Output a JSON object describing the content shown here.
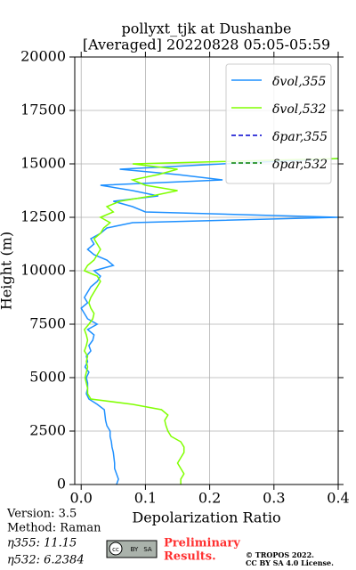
{
  "chart_data": {
    "type": "line",
    "title": [
      "pollyxt_tjk at Dushanbe",
      "[Averaged] 20220828 05:05-05:59"
    ],
    "x_label": "Depolarization Ratio",
    "y_label": "Height (m)",
    "xlim": [
      -0.01,
      0.4
    ],
    "ylim": [
      0,
      20000
    ],
    "xticks": [
      {
        "value": 0,
        "label": "0.0"
      },
      0.1,
      0.2,
      0.3,
      0.4
    ],
    "yticks": [
      0,
      2500,
      5000,
      7500,
      10000,
      12500,
      15000,
      17500,
      20000
    ],
    "grid": true,
    "legend": "upper right",
    "heights": [
      0,
      250,
      500,
      750,
      1000,
      1250,
      1500,
      1750,
      2000,
      2250,
      2500,
      2750,
      3000,
      3250,
      3500,
      3750,
      4000,
      4250,
      4500,
      4750,
      5000,
      5250,
      5500,
      5750,
      6000,
      6250,
      6500,
      6750,
      7000,
      7250,
      7500,
      7750,
      8000,
      8250,
      8500,
      8750,
      9000,
      9250,
      9500,
      9750,
      10000,
      10250,
      10500,
      10750,
      11000,
      11250,
      11500,
      11750,
      12000,
      12250,
      12500,
      12750,
      13000,
      13250,
      13500,
      13750,
      14000,
      14250,
      14500,
      14750,
      15000,
      15250
    ],
    "series": [
      {
        "name": "δvol,355",
        "color": "#1e90ff",
        "dash": false,
        "values": [
          0.055,
          0.058,
          0.055,
          0.052,
          0.052,
          0.051,
          0.05,
          0.048,
          0.047,
          0.045,
          0.045,
          0.04,
          0.038,
          0.037,
          0.036,
          0.025,
          0.012,
          0.008,
          0.01,
          0.01,
          0.008,
          0.012,
          0.006,
          0.01,
          0.008,
          0.015,
          0.012,
          0.018,
          0.02,
          0.01,
          0.025,
          0.01,
          0.005,
          0.0,
          0.01,
          0.005,
          0.01,
          0.015,
          0.025,
          0.03,
          0.02,
          0.05,
          0.04,
          0.02,
          0.01,
          0.02,
          0.015,
          0.03,
          0.04,
          0.08,
          0.4,
          0.1,
          0.08,
          0.05,
          0.12,
          0.08,
          0.03,
          0.22,
          0.15,
          0.06,
          0.22,
          0.4
        ]
      },
      {
        "name": "δvol,532",
        "color": "#80ff00",
        "dash": false,
        "values": [
          0.155,
          0.155,
          0.16,
          0.155,
          0.15,
          0.155,
          0.16,
          0.16,
          0.155,
          0.14,
          0.135,
          0.132,
          0.13,
          0.135,
          0.125,
          0.08,
          0.015,
          0.01,
          0.01,
          0.008,
          0.006,
          0.008,
          0.01,
          0.008,
          0.01,
          0.005,
          0.008,
          0.01,
          0.008,
          0.005,
          0.012,
          0.018,
          0.02,
          0.015,
          0.012,
          0.015,
          0.02,
          0.025,
          0.03,
          0.025,
          0.005,
          0.01,
          0.02,
          0.025,
          0.03,
          0.025,
          0.02,
          0.03,
          0.035,
          0.045,
          0.03,
          0.05,
          0.04,
          0.06,
          0.11,
          0.15,
          0.1,
          0.08,
          0.12,
          0.15,
          0.08,
          0.4
        ]
      },
      {
        "name": "δpar,355",
        "color": "#0000cd",
        "dash": true,
        "values": [
          null,
          null,
          null,
          null,
          null,
          null,
          null,
          null,
          null,
          null,
          null,
          null,
          null,
          null,
          null,
          null,
          null,
          null,
          null,
          null,
          null,
          null,
          null,
          null,
          null,
          null,
          null,
          null,
          null,
          null,
          null,
          null,
          null,
          null,
          null,
          null,
          null,
          null,
          null,
          null,
          null,
          null,
          null,
          null,
          null,
          null,
          null,
          null,
          null,
          null,
          null,
          null,
          null,
          null,
          null,
          null,
          null,
          null,
          null,
          null,
          null,
          null
        ]
      },
      {
        "name": "δpar,532",
        "color": "#008000",
        "dash": true,
        "values": [
          null,
          null,
          null,
          null,
          null,
          null,
          null,
          null,
          null,
          null,
          null,
          null,
          null,
          null,
          null,
          null,
          null,
          null,
          null,
          null,
          null,
          null,
          null,
          null,
          null,
          null,
          null,
          null,
          null,
          null,
          null,
          null,
          null,
          null,
          null,
          null,
          null,
          null,
          null,
          null,
          null,
          null,
          null,
          null,
          null,
          null,
          null,
          null,
          null,
          null,
          null,
          null,
          null,
          null,
          null,
          null,
          null,
          null,
          null,
          null,
          null,
          null
        ]
      }
    ]
  },
  "footer": {
    "version": "Version: 3.5",
    "method": "Method: Raman",
    "eta355": "η355:  11.15",
    "eta532": "η532: 6.2384",
    "logo": [
      "cc",
      "BY",
      "SA"
    ],
    "preliminary": [
      "Preliminary",
      "Results."
    ],
    "copyright": [
      "© TROPOS 2022.",
      "CC BY SA 4.0 License."
    ]
  }
}
